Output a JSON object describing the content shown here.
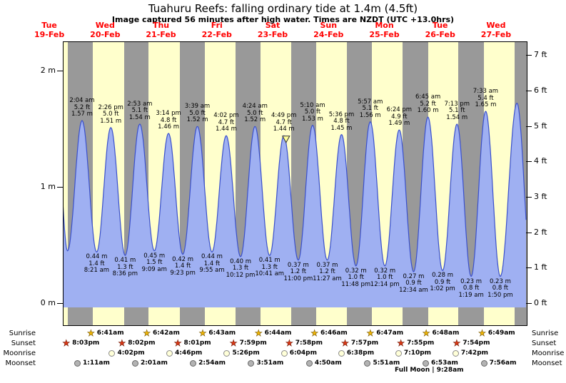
{
  "title": "Tuahuru Reefs: falling  ordinary tide at 1.4m (4.5ft)",
  "subtitle": "Image captured 56 minutes after high water. Times are NZDT (UTC +13.0hrs)",
  "full_moon": "Full Moon | 9:28am",
  "colors": {
    "day_bg": "#ffffcc",
    "night_bg": "#999999",
    "tide_fill": "#9fb0f2",
    "tide_stroke": "#3a50cc",
    "day_label": "#ff0000",
    "marker_fill": "#ffff99",
    "marker_stroke": "#333333"
  },
  "axes": {
    "left": [
      {
        "v": 2,
        "label": "2 m"
      },
      {
        "v": 1,
        "label": "1 m"
      },
      {
        "v": 0,
        "label": "0 m"
      }
    ],
    "right": [
      {
        "v": 7,
        "label": "7 ft"
      },
      {
        "v": 6,
        "label": "6 ft"
      },
      {
        "v": 5,
        "label": "5 ft"
      },
      {
        "v": 4,
        "label": "4 ft"
      },
      {
        "v": 3,
        "label": "3 ft"
      },
      {
        "v": 2,
        "label": "2 ft"
      },
      {
        "v": 1,
        "label": "1 ft"
      },
      {
        "v": 0,
        "label": "0 ft"
      }
    ]
  },
  "marker": {
    "t": 113.75
  },
  "chart_data": {
    "type": "area",
    "title": "Tide height curve, Tue 19-Feb to Wed 27-Feb",
    "x_axis": {
      "unit": "hours since Tue 19-Feb 00:00 NZDT",
      "start": 17.8,
      "end": 216.9
    },
    "y_axis": {
      "unit_left": "m",
      "unit_right": "ft",
      "left_range": [
        0,
        2
      ],
      "right_range": [
        0,
        7
      ]
    },
    "days": [
      {
        "name": "Tue",
        "date": "19-Feb",
        "noon_t": 12
      },
      {
        "name": "Wed",
        "date": "20-Feb",
        "noon_t": 36
      },
      {
        "name": "Thu",
        "date": "21-Feb",
        "noon_t": 60
      },
      {
        "name": "Fri",
        "date": "22-Feb",
        "noon_t": 84
      },
      {
        "name": "Sat",
        "date": "23-Feb",
        "noon_t": 108
      },
      {
        "name": "Sun",
        "date": "24-Feb",
        "noon_t": 132
      },
      {
        "name": "Mon",
        "date": "25-Feb",
        "noon_t": 156
      },
      {
        "name": "Tue",
        "date": "26-Feb",
        "noon_t": 180
      },
      {
        "name": "Wed",
        "date": "27-Feb",
        "noon_t": 204
      }
    ],
    "nights": [
      {
        "set": 20.05,
        "rise": 30.68
      },
      {
        "set": 44.03,
        "rise": 54.7
      },
      {
        "set": 68.02,
        "rise": 78.72
      },
      {
        "set": 91.98,
        "rise": 102.73
      },
      {
        "set": 115.97,
        "rise": 126.77
      },
      {
        "set": 139.95,
        "rise": 150.78
      },
      {
        "set": 163.92,
        "rise": 174.8
      },
      {
        "set": 187.9,
        "rise": 198.82
      },
      {
        "set": 211.87,
        "rise": 218.0
      }
    ],
    "tide_events": [
      {
        "t": 15.2,
        "m": 1.5,
        "type": "edge"
      },
      {
        "t": 19.83,
        "m": 0.45,
        "type": "edge"
      },
      {
        "t": 26.07,
        "m": 1.57,
        "type": "high",
        "lines": [
          "2:04 am",
          "5.2 ft",
          "1.57 m"
        ]
      },
      {
        "t": 32.35,
        "m": 0.44,
        "type": "low",
        "lines": [
          "0.44 m",
          "1.4 ft",
          "8:21 am"
        ]
      },
      {
        "t": 38.43,
        "m": 1.51,
        "type": "high",
        "lines": [
          "2:26 pm",
          "5.0 ft",
          "1.51 m"
        ]
      },
      {
        "t": 44.6,
        "m": 0.41,
        "type": "low",
        "lines": [
          "0.41 m",
          "1.3 ft",
          "8:36 pm"
        ]
      },
      {
        "t": 50.88,
        "m": 1.54,
        "type": "high",
        "lines": [
          "2:53 am",
          "5.1 ft",
          "1.54 m"
        ]
      },
      {
        "t": 57.15,
        "m": 0.45,
        "type": "low",
        "lines": [
          "0.45 m",
          "1.5 ft",
          "9:09 am"
        ]
      },
      {
        "t": 63.23,
        "m": 1.46,
        "type": "high",
        "lines": [
          "3:14 pm",
          "4.8 ft",
          "1.46 m"
        ]
      },
      {
        "t": 69.38,
        "m": 0.42,
        "type": "low",
        "lines": [
          "0.42 m",
          "1.4 ft",
          "9:23 pm"
        ]
      },
      {
        "t": 75.65,
        "m": 1.52,
        "type": "high",
        "lines": [
          "3:39 am",
          "5.0 ft",
          "1.52 m"
        ]
      },
      {
        "t": 81.92,
        "m": 0.44,
        "type": "low",
        "lines": [
          "0.44 m",
          "1.4 ft",
          "9:55 am"
        ]
      },
      {
        "t": 88.03,
        "m": 1.44,
        "type": "high",
        "lines": [
          "4:02 pm",
          "4.7 ft",
          "1.44 m"
        ]
      },
      {
        "t": 94.2,
        "m": 0.4,
        "type": "low",
        "lines": [
          "0.40 m",
          "1.3 ft",
          "10:12 pm"
        ]
      },
      {
        "t": 100.4,
        "m": 1.52,
        "type": "high",
        "lines": [
          "4:24 am",
          "5.0 ft",
          "1.52 m"
        ]
      },
      {
        "t": 106.68,
        "m": 0.41,
        "type": "low",
        "lines": [
          "0.41 m",
          "1.3 ft",
          "10:41 am"
        ]
      },
      {
        "t": 112.82,
        "m": 1.44,
        "type": "high",
        "lines": [
          "4:49 pm",
          "4.7 ft",
          "1.44 m"
        ]
      },
      {
        "t": 119.0,
        "m": 0.37,
        "type": "low",
        "lines": [
          "0.37 m",
          "1.2 ft",
          "11:00 pm"
        ]
      },
      {
        "t": 125.17,
        "m": 1.53,
        "type": "high",
        "lines": [
          "5:10 am",
          "5.0 ft",
          "1.53 m"
        ]
      },
      {
        "t": 131.45,
        "m": 0.37,
        "type": "low",
        "lines": [
          "0.37 m",
          "1.2 ft",
          "11:27 am"
        ]
      },
      {
        "t": 137.6,
        "m": 1.45,
        "type": "high",
        "lines": [
          "5:36 pm",
          "4.8 ft",
          "1.45 m"
        ]
      },
      {
        "t": 143.8,
        "m": 0.32,
        "type": "low",
        "lines": [
          "0.32 m",
          "1.0 ft",
          "11:48 pm"
        ]
      },
      {
        "t": 149.95,
        "m": 1.56,
        "type": "high",
        "lines": [
          "5:57 am",
          "5.1 ft",
          "1.56 m"
        ]
      },
      {
        "t": 156.23,
        "m": 0.32,
        "type": "low",
        "lines": [
          "0.32 m",
          "1.0 ft",
          "12:14 pm"
        ]
      },
      {
        "t": 162.4,
        "m": 1.49,
        "type": "high",
        "lines": [
          "6:24 pm",
          "4.9 ft",
          "1.49 m"
        ]
      },
      {
        "t": 168.57,
        "m": 0.27,
        "type": "low",
        "lines": [
          "0.27 m",
          "0.9 ft",
          "12:34 am"
        ]
      },
      {
        "t": 174.75,
        "m": 1.6,
        "type": "high",
        "lines": [
          "6:45 am",
          "5.2 ft",
          "1.60 m"
        ]
      },
      {
        "t": 181.03,
        "m": 0.28,
        "type": "low",
        "lines": [
          "0.28 m",
          "0.9 ft",
          "1:02 pm"
        ]
      },
      {
        "t": 187.22,
        "m": 1.54,
        "type": "high",
        "lines": [
          "7:13 pm",
          "5.1 ft",
          "1.54 m"
        ]
      },
      {
        "t": 193.32,
        "m": 0.23,
        "type": "low",
        "lines": [
          "0.23 m",
          "0.8 ft",
          "1:19 am"
        ]
      },
      {
        "t": 199.55,
        "m": 1.65,
        "type": "high",
        "lines": [
          "7:33 am",
          "5.4 ft",
          "1.65 m"
        ]
      },
      {
        "t": 205.83,
        "m": 0.23,
        "type": "low",
        "lines": [
          "0.23 m",
          "0.8 ft",
          "1:50 pm"
        ]
      },
      {
        "t": 213.0,
        "m": 1.72,
        "type": "edge"
      },
      {
        "t": 219.3,
        "m": 0.25,
        "type": "edge"
      }
    ]
  },
  "sun_moon": {
    "rows": [
      {
        "id": "sunrise",
        "label": "Sunrise",
        "icon": "sunrise-star-icon",
        "events": [
          {
            "t": 30.68,
            "time": "6:41am"
          },
          {
            "t": 54.7,
            "time": "6:42am"
          },
          {
            "t": 78.72,
            "time": "6:43am"
          },
          {
            "t": 102.73,
            "time": "6:44am"
          },
          {
            "t": 126.77,
            "time": "6:46am"
          },
          {
            "t": 150.78,
            "time": "6:47am"
          },
          {
            "t": 174.8,
            "time": "6:48am"
          },
          {
            "t": 198.82,
            "time": "6:49am"
          }
        ]
      },
      {
        "id": "sunset",
        "label": "Sunset",
        "icon": "sunset-star-icon",
        "events": [
          {
            "t": 20.05,
            "time": "8:03pm"
          },
          {
            "t": 44.03,
            "time": "8:02pm"
          },
          {
            "t": 68.02,
            "time": "8:01pm"
          },
          {
            "t": 91.98,
            "time": "7:59pm"
          },
          {
            "t": 115.97,
            "time": "7:58pm"
          },
          {
            "t": 139.95,
            "time": "7:57pm"
          },
          {
            "t": 163.92,
            "time": "7:55pm"
          },
          {
            "t": 187.9,
            "time": "7:54pm"
          }
        ]
      },
      {
        "id": "moonrise",
        "label": "Moonrise",
        "icon": "moonrise-circle-icon",
        "events": [
          {
            "t": 40.03,
            "time": "4:02pm"
          },
          {
            "t": 64.77,
            "time": "4:46pm"
          },
          {
            "t": 89.43,
            "time": "5:26pm"
          },
          {
            "t": 114.07,
            "time": "6:04pm"
          },
          {
            "t": 138.63,
            "time": "6:38pm"
          },
          {
            "t": 163.17,
            "time": "7:10pm"
          },
          {
            "t": 187.7,
            "time": "7:42pm"
          }
        ]
      },
      {
        "id": "moonset",
        "label": "Moonset",
        "icon": "moonset-circle-icon",
        "events": [
          {
            "t": 25.18,
            "time": "1:11am"
          },
          {
            "t": 50.02,
            "time": "2:01am"
          },
          {
            "t": 74.9,
            "time": "2:54am"
          },
          {
            "t": 99.85,
            "time": "3:51am"
          },
          {
            "t": 124.83,
            "time": "4:50am"
          },
          {
            "t": 149.85,
            "time": "5:51am"
          },
          {
            "t": 174.88,
            "time": "6:53am"
          },
          {
            "t": 199.93,
            "time": "7:56am"
          }
        ]
      }
    ]
  }
}
